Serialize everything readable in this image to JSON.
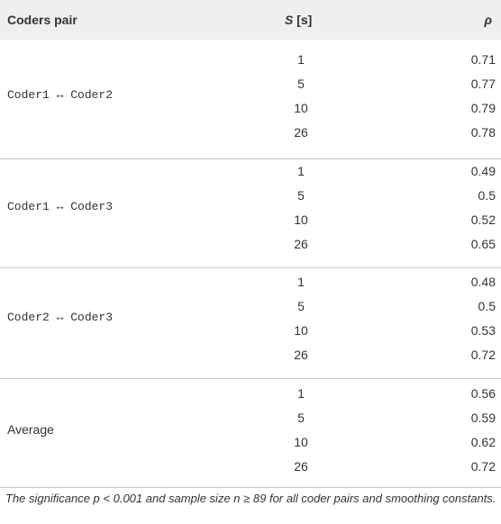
{
  "header": {
    "columns": [
      "Coders pair",
      {
        "var": "S",
        "unit": "[s]"
      },
      "ρ"
    ]
  },
  "groups": [
    {
      "pair": "Coder1 ↔ Coder2",
      "rows": [
        [
          1,
          0.71
        ],
        [
          5,
          0.77
        ],
        [
          10,
          0.79
        ],
        [
          26,
          0.78
        ]
      ]
    },
    {
      "pair": "Coder1 ↔ Coder3",
      "rows": [
        [
          1,
          0.49
        ],
        [
          5,
          0.5
        ],
        [
          10,
          0.52
        ],
        [
          26,
          0.65
        ]
      ]
    },
    {
      "pair": "Coder2 ↔ Coder3",
      "rows": [
        [
          1,
          0.48
        ],
        [
          5,
          0.5
        ],
        [
          10,
          0.53
        ],
        [
          26,
          0.72
        ]
      ]
    },
    {
      "pair": "Average",
      "rows": [
        [
          1,
          0.56
        ],
        [
          5,
          0.59
        ],
        [
          10,
          0.62
        ],
        [
          26,
          0.72
        ]
      ]
    }
  ],
  "caption": "The significance p < 0.001 and sample size n ≥ 89 for all coder pairs and smoothing constants."
}
